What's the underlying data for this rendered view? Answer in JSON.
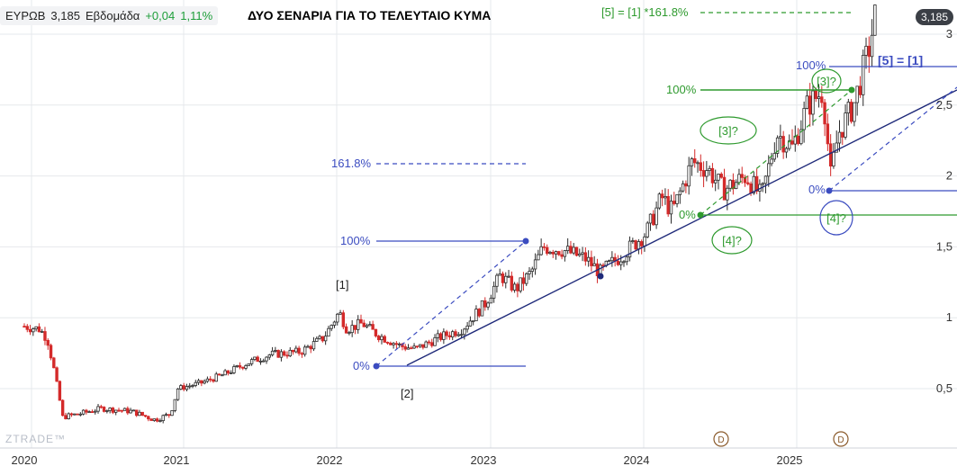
{
  "header": {
    "symbol": "ΕΥΡΩΒ",
    "price": "3,185",
    "interval": "Εβδομάδα",
    "change": "+0,04",
    "change_pct": "1,11%"
  },
  "title": "ΔΥΟ ΣΕΝΑΡΙΑ ΓΙΑ ΤΟ ΤΕΛΕΥΤΑΙΟ ΚΥΜΑ",
  "watermark": "ZTRADE™",
  "last_price_badge": "3,185",
  "colors": {
    "up": "#2b2b2b",
    "down": "#d42a2a",
    "blue": "#3b4cc0",
    "navy": "#1f2a7a",
    "green": "#2e9a2e"
  },
  "chart_data": {
    "type": "candlestick",
    "xlabel": "",
    "ylabel": "",
    "x_ticks": [
      "2020",
      "2021",
      "2022",
      "2023",
      "2024",
      "2025"
    ],
    "y_ticks": [
      "0,5",
      "1",
      "1,5",
      "2",
      "2,5",
      "3"
    ],
    "ylim": [
      0.3,
      3.3
    ],
    "xlim": [
      2020.0,
      2026.1
    ],
    "series": [
      {
        "values": [
          [
            2020.0,
            0.94
          ],
          [
            2020.1,
            0.92
          ],
          [
            2020.15,
            0.85
          ],
          [
            2020.2,
            0.6
          ],
          [
            2020.25,
            0.3
          ],
          [
            2020.35,
            0.32
          ],
          [
            2020.5,
            0.36
          ],
          [
            2020.7,
            0.34
          ],
          [
            2020.85,
            0.28
          ],
          [
            2020.95,
            0.32
          ],
          [
            2021.0,
            0.5
          ],
          [
            2021.15,
            0.54
          ],
          [
            2021.3,
            0.6
          ],
          [
            2021.45,
            0.68
          ],
          [
            2021.6,
            0.74
          ],
          [
            2021.8,
            0.76
          ],
          [
            2021.95,
            0.86
          ],
          [
            2022.05,
            1.04
          ],
          [
            2022.1,
            0.92
          ],
          [
            2022.2,
            0.96
          ],
          [
            2022.3,
            0.88
          ],
          [
            2022.45,
            0.8
          ],
          [
            2022.55,
            0.78
          ],
          [
            2022.7,
            0.86
          ],
          [
            2022.85,
            0.92
          ],
          [
            2023.0,
            1.1
          ],
          [
            2023.1,
            1.3
          ],
          [
            2023.2,
            1.2
          ],
          [
            2023.3,
            1.32
          ],
          [
            2023.38,
            1.5
          ],
          [
            2023.5,
            1.48
          ],
          [
            2023.65,
            1.42
          ],
          [
            2023.75,
            1.32
          ],
          [
            2023.9,
            1.45
          ],
          [
            2024.05,
            1.6
          ],
          [
            2024.15,
            1.85
          ],
          [
            2024.22,
            1.75
          ],
          [
            2024.35,
            2.1
          ],
          [
            2024.45,
            2.05
          ],
          [
            2024.55,
            1.9
          ],
          [
            2024.7,
            2.0
          ],
          [
            2024.8,
            1.85
          ],
          [
            2024.9,
            2.3
          ],
          [
            2025.0,
            2.2
          ],
          [
            2025.1,
            2.5
          ],
          [
            2025.2,
            2.6
          ],
          [
            2025.25,
            2.0
          ],
          [
            2025.3,
            2.3
          ],
          [
            2025.4,
            2.5
          ],
          [
            2025.5,
            2.9
          ],
          [
            2025.55,
            3.185
          ]
        ]
      }
    ],
    "annotations": [
      "[5] = [1] *161.8%",
      "100%",
      "[5] = [1]",
      "[3]?",
      "100%",
      "[3]?",
      "161.8%",
      "0%",
      "0%",
      "[4]?",
      "[4]?",
      "100%",
      "[1]",
      "0%",
      "[2]",
      "D",
      "D"
    ]
  }
}
